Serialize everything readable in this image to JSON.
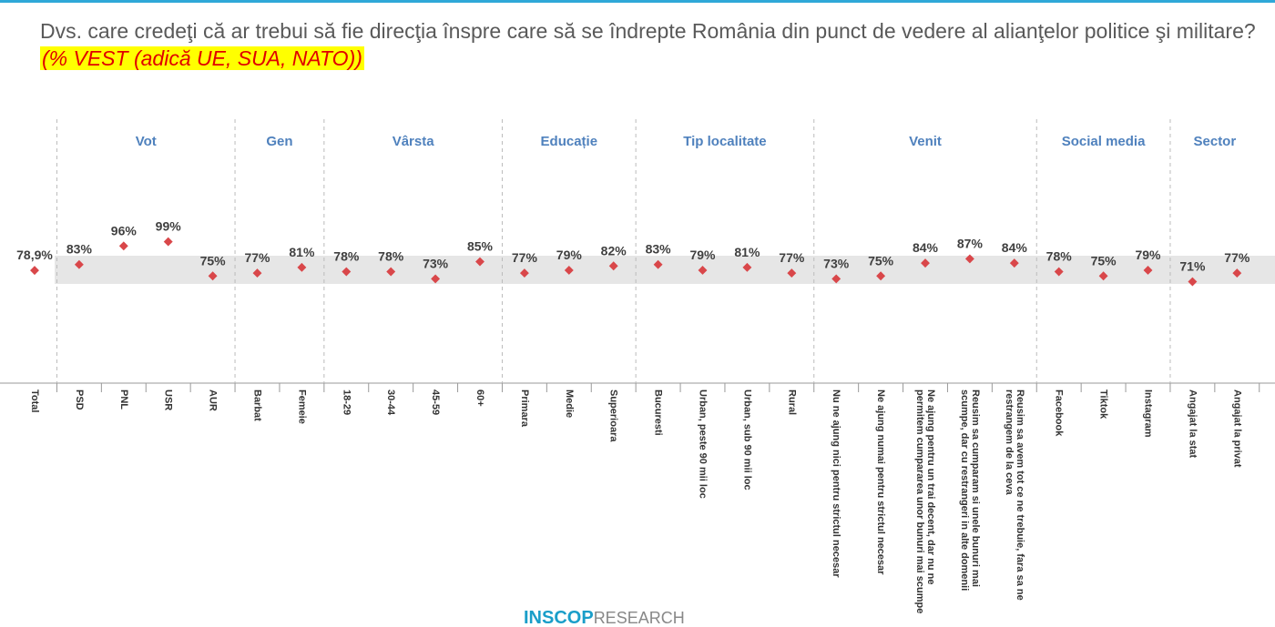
{
  "chart_data": {
    "type": "dot",
    "title": "Dvs. care credeţi că ar trebui să fie direcţia înspre care să se îndrepte România din punct de vedere al alianţelor politice şi militare?",
    "subtitle": "(% VEST (adică UE, SUA, NATO))",
    "color": "#d9474a",
    "groups": [
      {
        "name": null,
        "categories": [
          "Total"
        ],
        "values": [
          78.9
        ],
        "value_labels": [
          "78,9%"
        ]
      },
      {
        "name": "Vot",
        "categories": [
          "PSD",
          "PNL",
          "USR",
          "AUR"
        ],
        "values": [
          83,
          96,
          99,
          75
        ],
        "value_labels": [
          "83%",
          "96%",
          "99%",
          "75%"
        ]
      },
      {
        "name": "Gen",
        "categories": [
          "Barbat",
          "Femeie"
        ],
        "values": [
          77,
          81
        ],
        "value_labels": [
          "77%",
          "81%"
        ]
      },
      {
        "name": "Vârsta",
        "categories": [
          "18-29",
          "30-44",
          "45-59",
          "60+"
        ],
        "values": [
          78,
          78,
          73,
          85
        ],
        "value_labels": [
          "78%",
          "78%",
          "73%",
          "85%"
        ]
      },
      {
        "name": "Educație",
        "categories": [
          "Primara",
          "Medie",
          "Superioara"
        ],
        "values": [
          77,
          79,
          82
        ],
        "value_labels": [
          "77%",
          "79%",
          "82%"
        ]
      },
      {
        "name": "Tip localitate",
        "categories": [
          "Bucuresti",
          "Urban, peste 90 mii loc",
          "Urban, sub 90 mii loc",
          "Rural"
        ],
        "values": [
          83,
          79,
          81,
          77
        ],
        "value_labels": [
          "83%",
          "79%",
          "81%",
          "77%"
        ]
      },
      {
        "name": "Venit",
        "categories": [
          "Nu ne ajung nici pentru strictul necesar",
          "Ne ajung numai pentru strictul necesar",
          "Ne ajung pentru un trai decent, dar nu ne permitem cumpararea unor bunuri mai scumpe",
          "Reusim sa cumparam si unele bunuri mai scumpe, dar cu restrangeri in alte domenii",
          "Reusim sa avem tot ce ne trebuie, fara sa ne restrangem de la ceva"
        ],
        "values": [
          73,
          75,
          84,
          87,
          84
        ],
        "value_labels": [
          "73%",
          "75%",
          "84%",
          "87%",
          "84%"
        ]
      },
      {
        "name": "Social media",
        "categories": [
          "Facebook",
          "Tiktok",
          "Instagram"
        ],
        "values": [
          78,
          75,
          79
        ],
        "value_labels": [
          "78%",
          "75%",
          "79%"
        ]
      },
      {
        "name": "Sector",
        "categories": [
          "Angajat la stat",
          "Angajat la privat"
        ],
        "values": [
          71,
          77
        ],
        "value_labels": [
          "71%",
          "77%"
        ]
      }
    ]
  },
  "logo": "INSCOP",
  "logo_suffix": "RESEARCH"
}
